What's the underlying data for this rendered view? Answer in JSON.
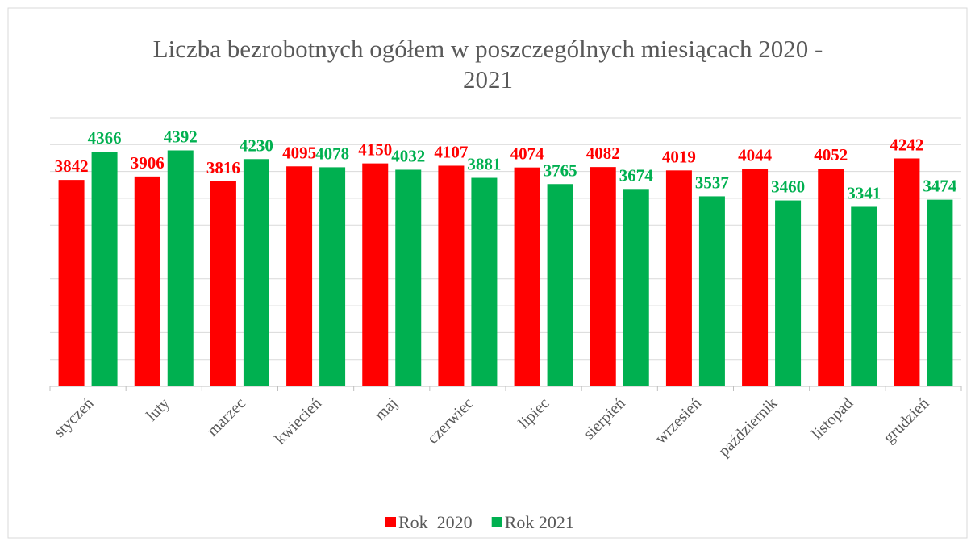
{
  "chart_data": {
    "type": "bar",
    "title": "Liczba bezrobotnych ogółem w poszczególnych miesiącach 2020 - 2021",
    "categories": [
      "styczeń",
      "luty",
      "marzec",
      "kwiecień",
      "maj",
      "czerwiec",
      "lipiec",
      "sierpień",
      "wrzesień",
      "październik",
      "listopad",
      "grudzień"
    ],
    "series": [
      {
        "name": "Rok  2020",
        "color": "#ff0000",
        "values": [
          3842,
          3906,
          3816,
          4095,
          4150,
          4107,
          4074,
          4082,
          4019,
          4044,
          4052,
          4242
        ]
      },
      {
        "name": "Rok 2021",
        "color": "#00b050",
        "values": [
          4366,
          4392,
          4230,
          4078,
          4032,
          3881,
          3765,
          3674,
          3537,
          3460,
          3341,
          3474
        ]
      }
    ],
    "ylim": [
      0,
      5000
    ],
    "yticks": [
      0,
      500,
      1000,
      1500,
      2000,
      2500,
      3000,
      3500,
      4000,
      4500,
      5000
    ],
    "grid": true,
    "legend": "bottom"
  }
}
